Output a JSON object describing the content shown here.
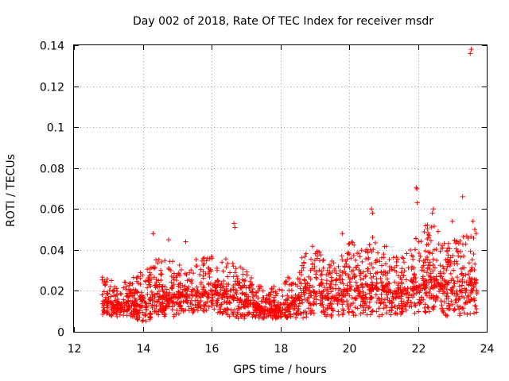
{
  "chart_data": {
    "type": "scatter",
    "title": "Day 002 of 2018, Rate Of TEC Index for receiver msdr",
    "xlabel": "GPS time / hours",
    "ylabel": "ROTI / TECUs",
    "xlim": [
      12,
      24
    ],
    "ylim": [
      0,
      0.14
    ],
    "grid": true,
    "marker": "+",
    "color": "#ff0000",
    "xticks": [
      12,
      14,
      16,
      18,
      20,
      22,
      24
    ],
    "xtick_labels": [
      "12",
      "14",
      "16",
      "18",
      "20",
      "22",
      "24"
    ],
    "yticks": [
      0,
      0.02,
      0.04,
      0.06,
      0.08,
      0.1,
      0.12,
      0.14
    ],
    "ytick_labels": [
      "0",
      "0.02",
      "0.04",
      "0.06",
      "0.08",
      "0.1",
      "0.12",
      "0.14"
    ],
    "series": [
      {
        "name": "ROTI",
        "description": "dense scatter of ROTI samples; envelope summarized plus notable outliers",
        "envelope": [
          {
            "x": 12.8,
            "low": 0.008,
            "high": 0.028
          },
          {
            "x": 13.2,
            "low": 0.007,
            "high": 0.026
          },
          {
            "x": 13.6,
            "low": 0.008,
            "high": 0.025
          },
          {
            "x": 14.0,
            "low": 0.004,
            "high": 0.03
          },
          {
            "x": 14.4,
            "low": 0.008,
            "high": 0.036
          },
          {
            "x": 14.8,
            "low": 0.006,
            "high": 0.035
          },
          {
            "x": 15.2,
            "low": 0.01,
            "high": 0.032
          },
          {
            "x": 15.6,
            "low": 0.009,
            "high": 0.036
          },
          {
            "x": 16.0,
            "low": 0.01,
            "high": 0.038
          },
          {
            "x": 16.4,
            "low": 0.008,
            "high": 0.036
          },
          {
            "x": 16.8,
            "low": 0.006,
            "high": 0.035
          },
          {
            "x": 17.2,
            "low": 0.007,
            "high": 0.026
          },
          {
            "x": 17.6,
            "low": 0.005,
            "high": 0.02
          },
          {
            "x": 18.0,
            "low": 0.007,
            "high": 0.024
          },
          {
            "x": 18.4,
            "low": 0.006,
            "high": 0.03
          },
          {
            "x": 18.8,
            "low": 0.007,
            "high": 0.045
          },
          {
            "x": 19.2,
            "low": 0.008,
            "high": 0.038
          },
          {
            "x": 19.6,
            "low": 0.007,
            "high": 0.034
          },
          {
            "x": 20.0,
            "low": 0.008,
            "high": 0.045
          },
          {
            "x": 20.4,
            "low": 0.008,
            "high": 0.04
          },
          {
            "x": 20.8,
            "low": 0.007,
            "high": 0.05
          },
          {
            "x": 21.2,
            "low": 0.007,
            "high": 0.04
          },
          {
            "x": 21.6,
            "low": 0.009,
            "high": 0.036
          },
          {
            "x": 22.0,
            "low": 0.008,
            "high": 0.048
          },
          {
            "x": 22.4,
            "low": 0.01,
            "high": 0.055
          },
          {
            "x": 22.8,
            "low": 0.008,
            "high": 0.045
          },
          {
            "x": 23.2,
            "low": 0.006,
            "high": 0.045
          },
          {
            "x": 23.6,
            "low": 0.009,
            "high": 0.052
          }
        ],
        "outliers": [
          {
            "x": 23.55,
            "y": 0.138
          },
          {
            "x": 23.52,
            "y": 0.136
          },
          {
            "x": 21.95,
            "y": 0.0705
          },
          {
            "x": 21.97,
            "y": 0.0698
          },
          {
            "x": 21.98,
            "y": 0.063
          },
          {
            "x": 23.3,
            "y": 0.066
          },
          {
            "x": 20.65,
            "y": 0.06
          },
          {
            "x": 20.68,
            "y": 0.058
          },
          {
            "x": 22.45,
            "y": 0.06
          },
          {
            "x": 22.42,
            "y": 0.058
          },
          {
            "x": 16.65,
            "y": 0.053
          },
          {
            "x": 16.68,
            "y": 0.051
          },
          {
            "x": 14.3,
            "y": 0.048
          },
          {
            "x": 14.75,
            "y": 0.045
          },
          {
            "x": 15.25,
            "y": 0.044
          },
          {
            "x": 19.8,
            "y": 0.048
          },
          {
            "x": 23.0,
            "y": 0.054
          },
          {
            "x": 23.6,
            "y": 0.054
          }
        ]
      }
    ]
  }
}
